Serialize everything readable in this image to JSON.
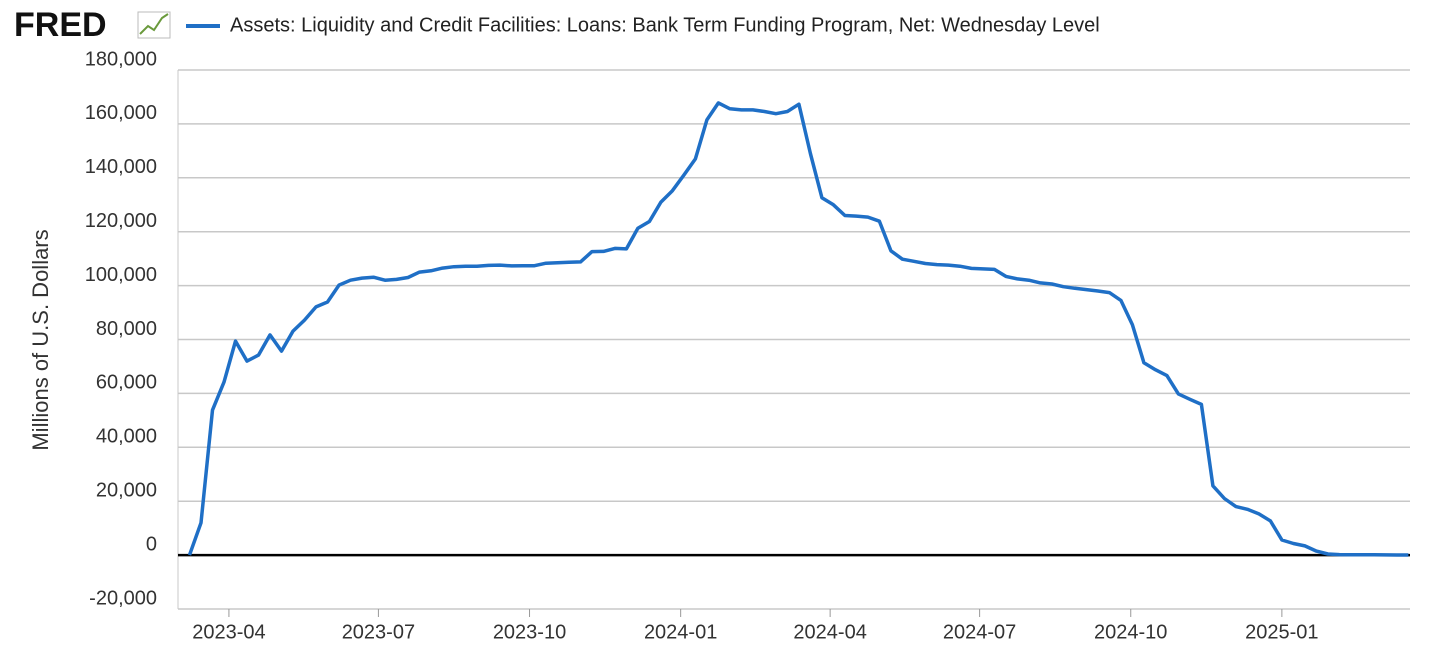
{
  "logo": "FRED",
  "chart_data": {
    "type": "line",
    "y_axis_label": "Millions of U.S. Dollars",
    "x": [
      "2023-03-08",
      "2023-03-15",
      "2023-03-22",
      "2023-03-29",
      "2023-04-05",
      "2023-04-12",
      "2023-04-19",
      "2023-04-26",
      "2023-05-03",
      "2023-05-10",
      "2023-05-17",
      "2023-05-24",
      "2023-05-31",
      "2023-06-07",
      "2023-06-14",
      "2023-06-21",
      "2023-06-28",
      "2023-07-05",
      "2023-07-12",
      "2023-07-19",
      "2023-07-26",
      "2023-08-02",
      "2023-08-09",
      "2023-08-16",
      "2023-08-23",
      "2023-08-30",
      "2023-09-06",
      "2023-09-13",
      "2023-09-20",
      "2023-09-27",
      "2023-10-04",
      "2023-10-11",
      "2023-10-18",
      "2023-10-25",
      "2023-11-01",
      "2023-11-08",
      "2023-11-15",
      "2023-11-22",
      "2023-11-29",
      "2023-12-06",
      "2023-12-13",
      "2023-12-20",
      "2023-12-27",
      "2024-01-03",
      "2024-01-10",
      "2024-01-17",
      "2024-01-24",
      "2024-01-31",
      "2024-02-07",
      "2024-02-14",
      "2024-02-21",
      "2024-02-28",
      "2024-03-06",
      "2024-03-13",
      "2024-03-20",
      "2024-03-27",
      "2024-04-03",
      "2024-04-10",
      "2024-04-17",
      "2024-04-24",
      "2024-05-01",
      "2024-05-08",
      "2024-05-15",
      "2024-05-22",
      "2024-05-29",
      "2024-06-05",
      "2024-06-12",
      "2024-06-19",
      "2024-06-26",
      "2024-07-03",
      "2024-07-10",
      "2024-07-17",
      "2024-07-24",
      "2024-07-31",
      "2024-08-07",
      "2024-08-14",
      "2024-08-21",
      "2024-08-28",
      "2024-09-04",
      "2024-09-11",
      "2024-09-18",
      "2024-09-25",
      "2024-10-02",
      "2024-10-09",
      "2024-10-16",
      "2024-10-23",
      "2024-10-30",
      "2024-11-06",
      "2024-11-13",
      "2024-11-20",
      "2024-11-27",
      "2024-12-04",
      "2024-12-11",
      "2024-12-18",
      "2024-12-25",
      "2025-01-01",
      "2025-01-08",
      "2025-01-15",
      "2025-01-22",
      "2025-01-29",
      "2025-02-05",
      "2025-02-12",
      "2025-02-19",
      "2025-02-26",
      "2025-03-05",
      "2025-03-12",
      "2025-03-19"
    ],
    "series": [
      {
        "name": "Assets: Liquidity and Credit Facilities: Loans: Bank Term Funding Program, Net: Wednesday Level",
        "color": "#1f6fc6",
        "values": [
          0,
          12000,
          53800,
          64200,
          79400,
          72000,
          74200,
          81700,
          75700,
          83100,
          87200,
          92100,
          93900,
          100200,
          102000,
          102800,
          103100,
          102000,
          102300,
          103000,
          105000,
          105500,
          106500,
          107000,
          107200,
          107200,
          107500,
          107600,
          107300,
          107400,
          107400,
          108300,
          108500,
          108700,
          108800,
          112600,
          112700,
          113800,
          113600,
          121300,
          123800,
          131000,
          135200,
          141000,
          147000,
          161500,
          167800,
          165600,
          165200,
          165200,
          164600,
          163800,
          164600,
          167300,
          149000,
          132600,
          130000,
          126000,
          125800,
          125400,
          123900,
          112900,
          109800,
          109000,
          108200,
          107800,
          107600,
          107200,
          106400,
          106200,
          106000,
          103400,
          102500,
          102000,
          101000,
          100600,
          99600,
          99000,
          98500,
          98000,
          97400,
          94500,
          85500,
          71400,
          68800,
          66600,
          59800,
          57800,
          55900,
          25700,
          21000,
          18000,
          17000,
          15300,
          12700,
          5600,
          4300,
          3400,
          1500,
          400,
          200,
          100,
          100,
          100,
          60,
          30,
          20
        ]
      }
    ],
    "xlim": [
      "2023-03-01",
      "2025-03-20"
    ],
    "xticks": [
      "2023-04",
      "2023-07",
      "2023-10",
      "2024-01",
      "2024-04",
      "2024-07",
      "2024-10",
      "2025-01"
    ],
    "ylim": [
      -20000,
      180000
    ],
    "yticks": [
      {
        "value": -20000,
        "label": "-20,000"
      },
      0,
      {
        "value": 20000,
        "label": "20,000"
      },
      {
        "value": 40000,
        "label": "40,000"
      },
      {
        "value": 60000,
        "label": "60,000"
      },
      {
        "value": 80000,
        "label": "80,000"
      },
      {
        "value": 100000,
        "label": "100,000"
      },
      {
        "value": 120000,
        "label": "120,000"
      },
      {
        "value": 140000,
        "label": "140,000"
      },
      {
        "value": 160000,
        "label": "160,000"
      },
      {
        "value": 180000,
        "label": "180,000"
      }
    ],
    "grid": true,
    "zero_line": true
  }
}
